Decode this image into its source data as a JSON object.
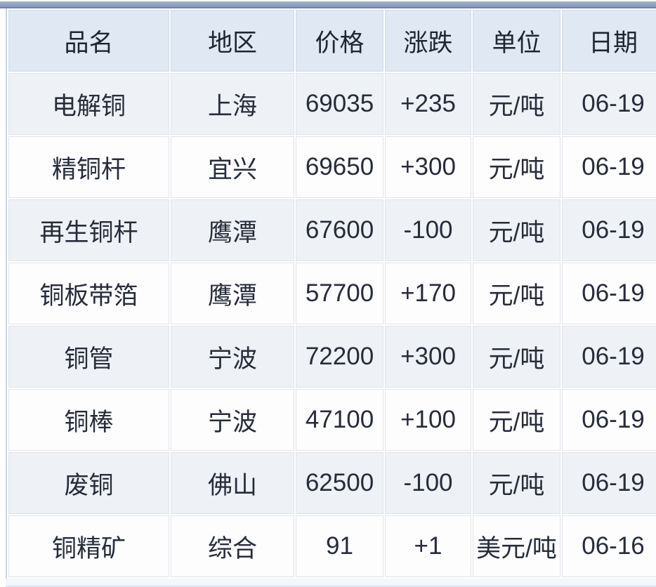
{
  "table": {
    "columns": [
      {
        "key": "name",
        "label": "品名"
      },
      {
        "key": "region",
        "label": "地区"
      },
      {
        "key": "price",
        "label": "价格"
      },
      {
        "key": "change",
        "label": "涨跌"
      },
      {
        "key": "unit",
        "label": "单位"
      },
      {
        "key": "date",
        "label": "日期"
      }
    ],
    "rows": [
      {
        "name": "电解铜",
        "region": "上海",
        "price": "69035",
        "change": "+235",
        "unit": "元/吨",
        "date": "06-19"
      },
      {
        "name": "精铜杆",
        "region": "宜兴",
        "price": "69650",
        "change": "+300",
        "unit": "元/吨",
        "date": "06-19"
      },
      {
        "name": "再生铜杆",
        "region": "鹰潭",
        "price": "67600",
        "change": "-100",
        "unit": "元/吨",
        "date": "06-19"
      },
      {
        "name": "铜板带箔",
        "region": "鹰潭",
        "price": "57700",
        "change": "+170",
        "unit": "元/吨",
        "date": "06-19"
      },
      {
        "name": "铜管",
        "region": "宁波",
        "price": "72200",
        "change": "+300",
        "unit": "元/吨",
        "date": "06-19"
      },
      {
        "name": "铜棒",
        "region": "宁波",
        "price": "47100",
        "change": "+100",
        "unit": "元/吨",
        "date": "06-19"
      },
      {
        "name": "废铜",
        "region": "佛山",
        "price": "62500",
        "change": "-100",
        "unit": "元/吨",
        "date": "06-19"
      },
      {
        "name": "铜精矿",
        "region": "综合",
        "price": "91",
        "change": "+1",
        "unit": "美元/吨",
        "date": "06-16"
      }
    ]
  },
  "colors": {
    "up": "#c93a3a",
    "down": "#339944",
    "header_bg": "#dfe8f3",
    "row_alt_bg": "#eef1f5",
    "topbar": "#8296b6"
  }
}
